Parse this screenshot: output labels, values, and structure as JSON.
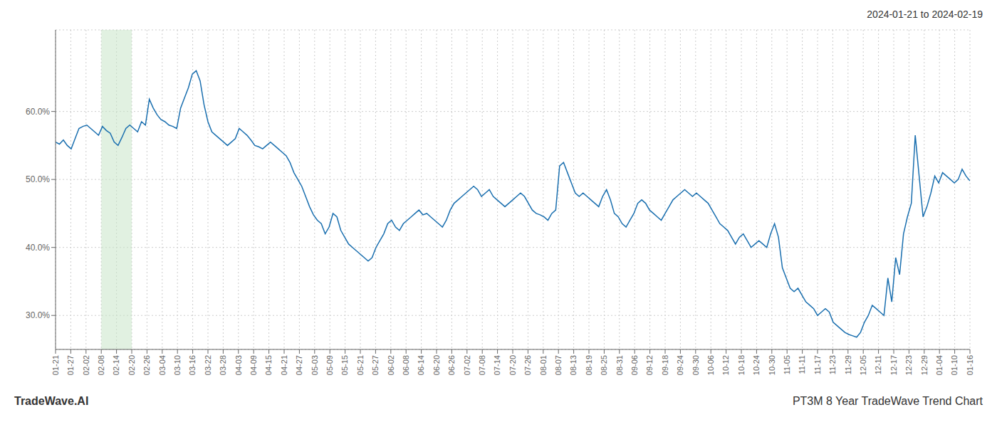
{
  "chart_data": {
    "type": "line",
    "title": "PT3M 8 Year TradeWave Trend Chart",
    "subtitle": "2024-01-21 to 2024-02-19",
    "annotations": [
      "TradeWave.AI"
    ],
    "color": "#1a6faf",
    "grid": true,
    "shaded_region": {
      "start": "02-08",
      "end": "02-20",
      "color": "#c8e6c9"
    },
    "xlim": [
      0,
      234
    ],
    "xticks": [
      {
        "value": 0,
        "label": "01-21"
      },
      {
        "value": 3.9,
        "label": "01-27"
      },
      {
        "value": 7.8,
        "label": "02-02"
      },
      {
        "value": 11.7,
        "label": "02-08"
      },
      {
        "value": 15.6,
        "label": "02-14"
      },
      {
        "value": 19.5,
        "label": "02-20"
      },
      {
        "value": 23.4,
        "label": "02-26"
      },
      {
        "value": 27.3,
        "label": "03-04"
      },
      {
        "value": 31.2,
        "label": "03-10"
      },
      {
        "value": 35.1,
        "label": "03-16"
      },
      {
        "value": 39,
        "label": "03-22"
      },
      {
        "value": 42.9,
        "label": "03-28"
      },
      {
        "value": 46.8,
        "label": "04-03"
      },
      {
        "value": 50.7,
        "label": "04-09"
      },
      {
        "value": 54.6,
        "label": "04-15"
      },
      {
        "value": 58.5,
        "label": "04-21"
      },
      {
        "value": 62.4,
        "label": "04-27"
      },
      {
        "value": 66.3,
        "label": "05-03"
      },
      {
        "value": 70.2,
        "label": "05-09"
      },
      {
        "value": 74.1,
        "label": "05-15"
      },
      {
        "value": 78,
        "label": "05-21"
      },
      {
        "value": 81.9,
        "label": "05-27"
      },
      {
        "value": 85.8,
        "label": "06-02"
      },
      {
        "value": 89.7,
        "label": "06-08"
      },
      {
        "value": 93.6,
        "label": "06-14"
      },
      {
        "value": 97.5,
        "label": "06-20"
      },
      {
        "value": 101.4,
        "label": "06-26"
      },
      {
        "value": 105.3,
        "label": "07-02"
      },
      {
        "value": 109.2,
        "label": "07-08"
      },
      {
        "value": 113.1,
        "label": "07-14"
      },
      {
        "value": 117,
        "label": "07-20"
      },
      {
        "value": 120.9,
        "label": "07-26"
      },
      {
        "value": 124.8,
        "label": "08-01"
      },
      {
        "value": 128.7,
        "label": "08-07"
      },
      {
        "value": 132.6,
        "label": "08-13"
      },
      {
        "value": 136.5,
        "label": "08-19"
      },
      {
        "value": 140.4,
        "label": "08-25"
      },
      {
        "value": 144.3,
        "label": "08-31"
      },
      {
        "value": 148.2,
        "label": "09-06"
      },
      {
        "value": 152.1,
        "label": "09-12"
      },
      {
        "value": 156,
        "label": "09-18"
      },
      {
        "value": 159.9,
        "label": "09-24"
      },
      {
        "value": 163.8,
        "label": "09-30"
      },
      {
        "value": 167.7,
        "label": "10-06"
      },
      {
        "value": 171.6,
        "label": "10-12"
      },
      {
        "value": 175.5,
        "label": "10-18"
      },
      {
        "value": 179.4,
        "label": "10-24"
      },
      {
        "value": 183.3,
        "label": "10-30"
      },
      {
        "value": 187.2,
        "label": "11-05"
      },
      {
        "value": 191.1,
        "label": "11-11"
      },
      {
        "value": 195,
        "label": "11-17"
      },
      {
        "value": 198.9,
        "label": "11-23"
      },
      {
        "value": 202.8,
        "label": "11-29"
      },
      {
        "value": 206.7,
        "label": "12-05"
      },
      {
        "value": 210.6,
        "label": "12-11"
      },
      {
        "value": 214.5,
        "label": "12-17"
      },
      {
        "value": 218.4,
        "label": "12-23"
      },
      {
        "value": 222.3,
        "label": "12-29"
      },
      {
        "value": 226.2,
        "label": "01-04"
      },
      {
        "value": 230.1,
        "label": "01-10"
      },
      {
        "value": 234,
        "label": "01-16"
      }
    ],
    "ylim": [
      25.0,
      72.0
    ],
    "yticks": [
      {
        "value": 30.0,
        "label": "30.0%"
      },
      {
        "value": 40.0,
        "label": "40.0%"
      },
      {
        "value": 50.0,
        "label": "50.0%"
      },
      {
        "value": 60.0,
        "label": "60.0%"
      }
    ],
    "values": [
      55.5,
      55.2,
      55.8,
      55.0,
      54.5,
      56.0,
      57.5,
      57.8,
      58.0,
      57.5,
      57.0,
      56.5,
      57.8,
      57.2,
      56.8,
      55.5,
      55.0,
      56.2,
      57.5,
      58.0,
      57.5,
      57.0,
      58.5,
      58.0,
      61.8,
      60.5,
      59.5,
      58.8,
      58.5,
      58.0,
      57.8,
      57.5,
      60.5,
      62.0,
      63.5,
      65.5,
      66.0,
      64.5,
      61.0,
      58.5,
      57.0,
      56.5,
      56.0,
      55.5,
      55.0,
      55.5,
      56.0,
      57.5,
      57.0,
      56.5,
      55.8,
      55.0,
      54.8,
      54.5,
      55.0,
      55.5,
      55.0,
      54.5,
      54.0,
      53.5,
      52.5,
      51.0,
      50.0,
      49.0,
      47.5,
      46.0,
      44.8,
      44.0,
      43.5,
      42.0,
      43.0,
      45.0,
      44.5,
      42.5,
      41.5,
      40.5,
      40.0,
      39.5,
      39.0,
      38.5,
      38.0,
      38.5,
      40.0,
      41.0,
      42.0,
      43.5,
      44.0,
      43.0,
      42.5,
      43.5,
      44.0,
      44.5,
      45.0,
      45.5,
      44.8,
      45.0,
      44.5,
      44.0,
      43.5,
      43.0,
      44.0,
      45.5,
      46.5,
      47.0,
      47.5,
      48.0,
      48.5,
      49.0,
      48.5,
      47.5,
      48.0,
      48.5,
      47.5,
      47.0,
      46.5,
      46.0,
      46.5,
      47.0,
      47.5,
      48.0,
      47.5,
      46.5,
      45.5,
      45.0,
      44.8,
      44.5,
      44.0,
      45.0,
      45.5,
      52.0,
      52.5,
      51.0,
      49.5,
      48.0,
      47.5,
      48.0,
      47.5,
      47.0,
      46.5,
      46.0,
      47.5,
      48.5,
      47.0,
      45.0,
      44.5,
      43.5,
      43.0,
      44.0,
      45.0,
      46.5,
      47.0,
      46.5,
      45.5,
      45.0,
      44.5,
      44.0,
      45.0,
      46.0,
      47.0,
      47.5,
      48.0,
      48.5,
      48.0,
      47.5,
      48.0,
      47.5,
      47.0,
      46.5,
      45.5,
      44.5,
      43.5,
      43.0,
      42.5,
      41.5,
      40.5,
      41.5,
      42.0,
      41.0,
      40.0,
      40.5,
      41.0,
      40.5,
      40.0,
      42.0,
      43.5,
      41.5,
      37.0,
      35.5,
      34.0,
      33.5,
      34.0,
      33.0,
      32.0,
      31.5,
      31.0,
      30.0,
      30.5,
      31.0,
      30.5,
      29.0,
      28.5,
      28.0,
      27.5,
      27.2,
      27.0,
      26.8,
      27.5,
      29.0,
      30.0,
      31.5,
      31.0,
      30.5,
      30.0,
      35.5,
      32.0,
      38.5,
      36.0,
      42.0,
      44.5,
      46.5,
      56.5,
      50.5,
      44.5,
      46.0,
      48.0,
      50.5,
      49.5,
      51.0,
      50.5,
      50.0,
      49.5,
      50.0,
      51.5,
      50.5,
      49.8
    ]
  }
}
